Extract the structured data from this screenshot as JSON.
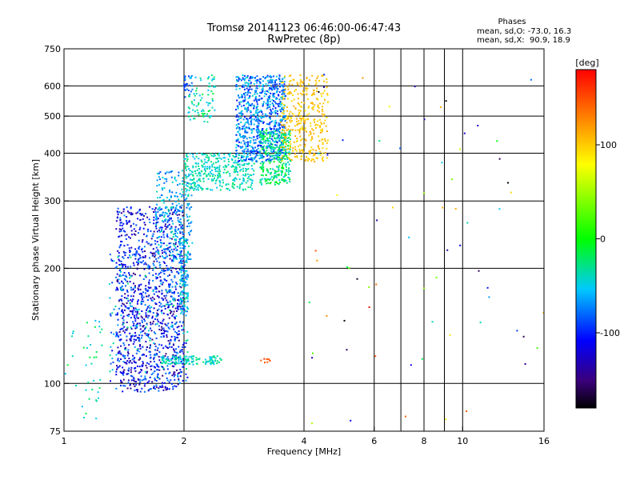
{
  "chart_data": {
    "type": "scatter",
    "title": "Tromsø 20141123 06:46:00-06:47:43",
    "subtitle": "RwPretec (8p)",
    "xlabel": "Frequency [MHz]",
    "ylabel": "Stationary phase Virtual Height [km]",
    "x_scale": "log",
    "y_scale": "log",
    "xlim": [
      1,
      16
    ],
    "ylim": [
      75,
      750
    ],
    "x_ticks": [
      1,
      2,
      4,
      6,
      8,
      10,
      16
    ],
    "x_tick_labels": [
      "1",
      "2",
      "4",
      "6",
      "8",
      "10",
      "16"
    ],
    "x_gridlines": [
      2,
      4,
      6,
      7,
      8,
      9,
      10
    ],
    "y_ticks": [
      75,
      100,
      200,
      300,
      400,
      500,
      600,
      750
    ],
    "y_tick_labels": [
      "75",
      "100",
      "200",
      "300",
      "400",
      "500",
      "600",
      "750"
    ],
    "y_gridlines": [
      100,
      200,
      300,
      400,
      500,
      600
    ],
    "grid": true,
    "legend": {
      "heading": "Phases",
      "line1": "mean, sd,O: -73.0, 16.3",
      "line2": "mean, sd,X:  90.9, 18.9"
    },
    "colorbar": {
      "label": "[deg]",
      "min": -180,
      "max": 180,
      "ticks": [
        100,
        0,
        -100
      ],
      "tick_labels": [
        "100",
        "0",
        "-100"
      ]
    },
    "clusters": [
      {
        "f": [
          1.35,
          2.0
        ],
        "h": [
          95,
          290
        ],
        "phase": [
          -150,
          -70
        ],
        "n": 1100
      },
      {
        "f": [
          1.3,
          2.05
        ],
        "h": [
          100,
          220
        ],
        "phase": [
          -120,
          -20
        ],
        "n": 250
      },
      {
        "f": [
          1.7,
          2.1
        ],
        "h": [
          210,
          360
        ],
        "phase": [
          -90,
          -30
        ],
        "n": 250
      },
      {
        "f": [
          1.95,
          2.05
        ],
        "h": [
          150,
          240
        ],
        "phase": [
          -80,
          -30
        ],
        "n": 120
      },
      {
        "f": [
          1.75,
          2.5
        ],
        "h": [
          112,
          118
        ],
        "phase": [
          -60,
          -20
        ],
        "n": 120
      },
      {
        "f": [
          2.0,
          3.0
        ],
        "h": [
          320,
          400
        ],
        "phase": [
          -60,
          -20
        ],
        "n": 350
      },
      {
        "f": [
          2.7,
          3.6
        ],
        "h": [
          380,
          640
        ],
        "phase": [
          -110,
          -40
        ],
        "n": 800
      },
      {
        "f": [
          3.1,
          3.7
        ],
        "h": [
          330,
          460
        ],
        "phase": [
          -50,
          0
        ],
        "n": 300
      },
      {
        "f": [
          3.5,
          4.6
        ],
        "h": [
          380,
          640
        ],
        "phase": [
          90,
          115
        ],
        "n": 350
      },
      {
        "f": [
          2.05,
          2.4
        ],
        "h": [
          480,
          640
        ],
        "phase": [
          -60,
          -10
        ],
        "n": 80
      },
      {
        "f": [
          2.0,
          2.1
        ],
        "h": [
          560,
          640
        ],
        "phase": [
          -100,
          -60
        ],
        "n": 30
      },
      {
        "f": [
          1.0,
          1.25
        ],
        "h": [
          78,
          150
        ],
        "phase": [
          -60,
          -10
        ],
        "n": 40
      },
      {
        "f": [
          3.1,
          3.3
        ],
        "h": [
          113,
          116
        ],
        "phase": [
          140,
          160
        ],
        "n": 8
      },
      {
        "f": [
          4.0,
          16.0
        ],
        "h": [
          78,
          650
        ],
        "phase": [
          -180,
          180
        ],
        "n": 70
      }
    ]
  }
}
